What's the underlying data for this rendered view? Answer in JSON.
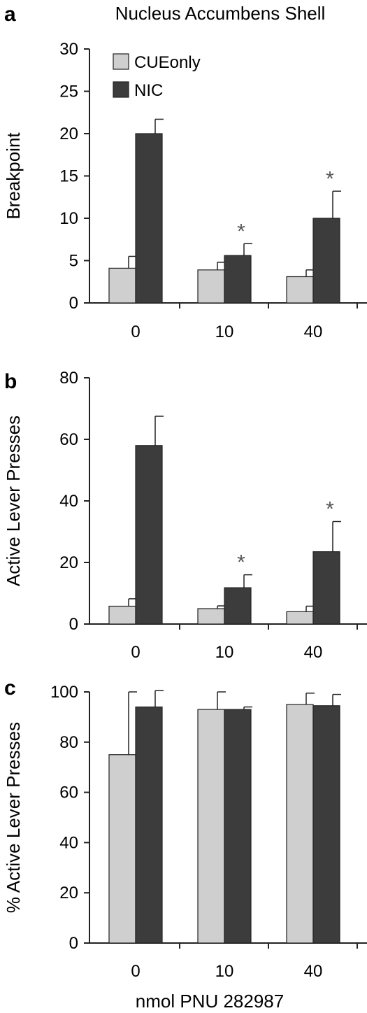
{
  "figure": {
    "title": "Nucleus Accumbens Shell",
    "xlabel": "nmol PNU 282987",
    "colors": {
      "CUEonly": "#cfcfcf",
      "NIC": "#3c3c3c",
      "outline": "#222222",
      "star": "#555555"
    }
  },
  "chart_data": [
    {
      "panel": "a",
      "type": "bar",
      "title": "Nucleus Accumbens Shell",
      "ylabel": "Breakpoint",
      "xlabel": "",
      "categories": [
        "0",
        "10",
        "40"
      ],
      "ylim": [
        0,
        30
      ],
      "yticks": [
        0,
        5,
        10,
        15,
        20,
        25,
        30
      ],
      "legend": "top-left",
      "series": [
        {
          "name": "CUEonly",
          "values": [
            4.1,
            3.9,
            3.1
          ],
          "errors": [
            1.4,
            0.9,
            0.8
          ]
        },
        {
          "name": "NIC",
          "values": [
            20.0,
            5.6,
            10.0
          ],
          "errors": [
            1.7,
            1.4,
            3.2
          ]
        }
      ],
      "annotations": [
        {
          "series": "NIC",
          "category": "10",
          "text": "*"
        },
        {
          "series": "NIC",
          "category": "40",
          "text": "*"
        }
      ]
    },
    {
      "panel": "b",
      "type": "bar",
      "ylabel": "Active Lever Presses",
      "xlabel": "",
      "categories": [
        "0",
        "10",
        "40"
      ],
      "ylim": [
        0,
        80
      ],
      "yticks": [
        0,
        20,
        40,
        60,
        80
      ],
      "series": [
        {
          "name": "CUEonly",
          "values": [
            5.8,
            5.0,
            4.0
          ],
          "errors": [
            2.4,
            0.9,
            1.8
          ]
        },
        {
          "name": "NIC",
          "values": [
            58.0,
            11.8,
            23.5
          ],
          "errors": [
            9.5,
            4.2,
            9.8
          ]
        }
      ],
      "annotations": [
        {
          "series": "NIC",
          "category": "10",
          "text": "*"
        },
        {
          "series": "NIC",
          "category": "40",
          "text": "*"
        }
      ]
    },
    {
      "panel": "c",
      "type": "bar",
      "ylabel": "% Active Lever Presses",
      "xlabel": "nmol PNU 282987",
      "categories": [
        "0",
        "10",
        "40"
      ],
      "ylim": [
        0,
        100
      ],
      "yticks": [
        0,
        20,
        40,
        60,
        80,
        100
      ],
      "series": [
        {
          "name": "CUEonly",
          "values": [
            75.0,
            93.0,
            95.0
          ],
          "errors": [
            25.0,
            7.0,
            4.5
          ]
        },
        {
          "name": "NIC",
          "values": [
            94.0,
            93.0,
            94.5
          ],
          "errors": [
            6.5,
            1.0,
            4.5
          ]
        }
      ],
      "annotations": []
    }
  ]
}
